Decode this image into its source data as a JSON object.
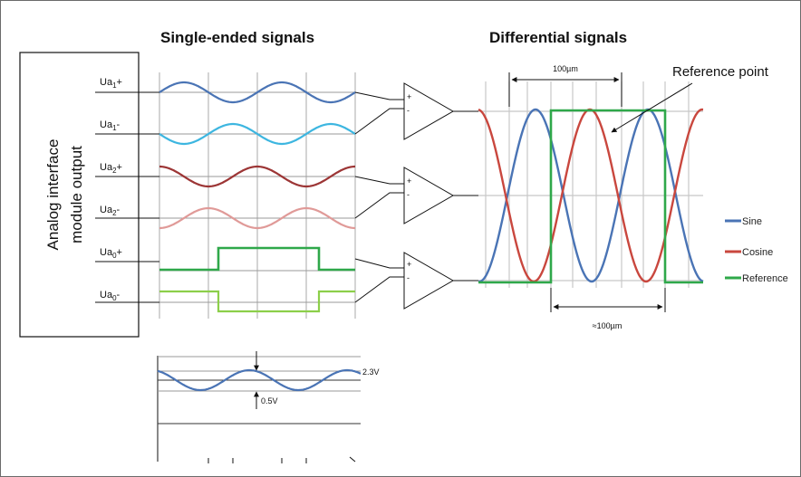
{
  "titles": {
    "single_ended": "Single-ended signals",
    "differential": "Differential signals"
  },
  "side_label": {
    "line1": "Analog interface",
    "line2": "module output"
  },
  "signals": [
    {
      "base": "Ua",
      "sub": "1",
      "suffix": "+",
      "color": "#4a74b5"
    },
    {
      "base": "Ua",
      "sub": "1",
      "suffix": "-",
      "color": "#3db6e0"
    },
    {
      "base": "Ua",
      "sub": "2",
      "suffix": "+",
      "color": "#9c3535"
    },
    {
      "base": "Ua",
      "sub": "2",
      "suffix": "-",
      "color": "#e09a98"
    },
    {
      "base": "Ua",
      "sub": "0",
      "suffix": "+",
      "color": "#2fa84a"
    },
    {
      "base": "Ua",
      "sub": "0",
      "suffix": "-",
      "color": "#8ccf4a"
    }
  ],
  "differential": {
    "period_label": "100µm",
    "reference_point_label": "Reference point",
    "ref_width_label": "≈100µm"
  },
  "legend": [
    {
      "label": "Sine",
      "color": "#4a74b5"
    },
    {
      "label": "Cosine",
      "color": "#c9473e"
    },
    {
      "label": "Reference",
      "color": "#2fa84a"
    }
  ],
  "levels": {
    "high": "2.3V",
    "low": "0.5V"
  }
}
